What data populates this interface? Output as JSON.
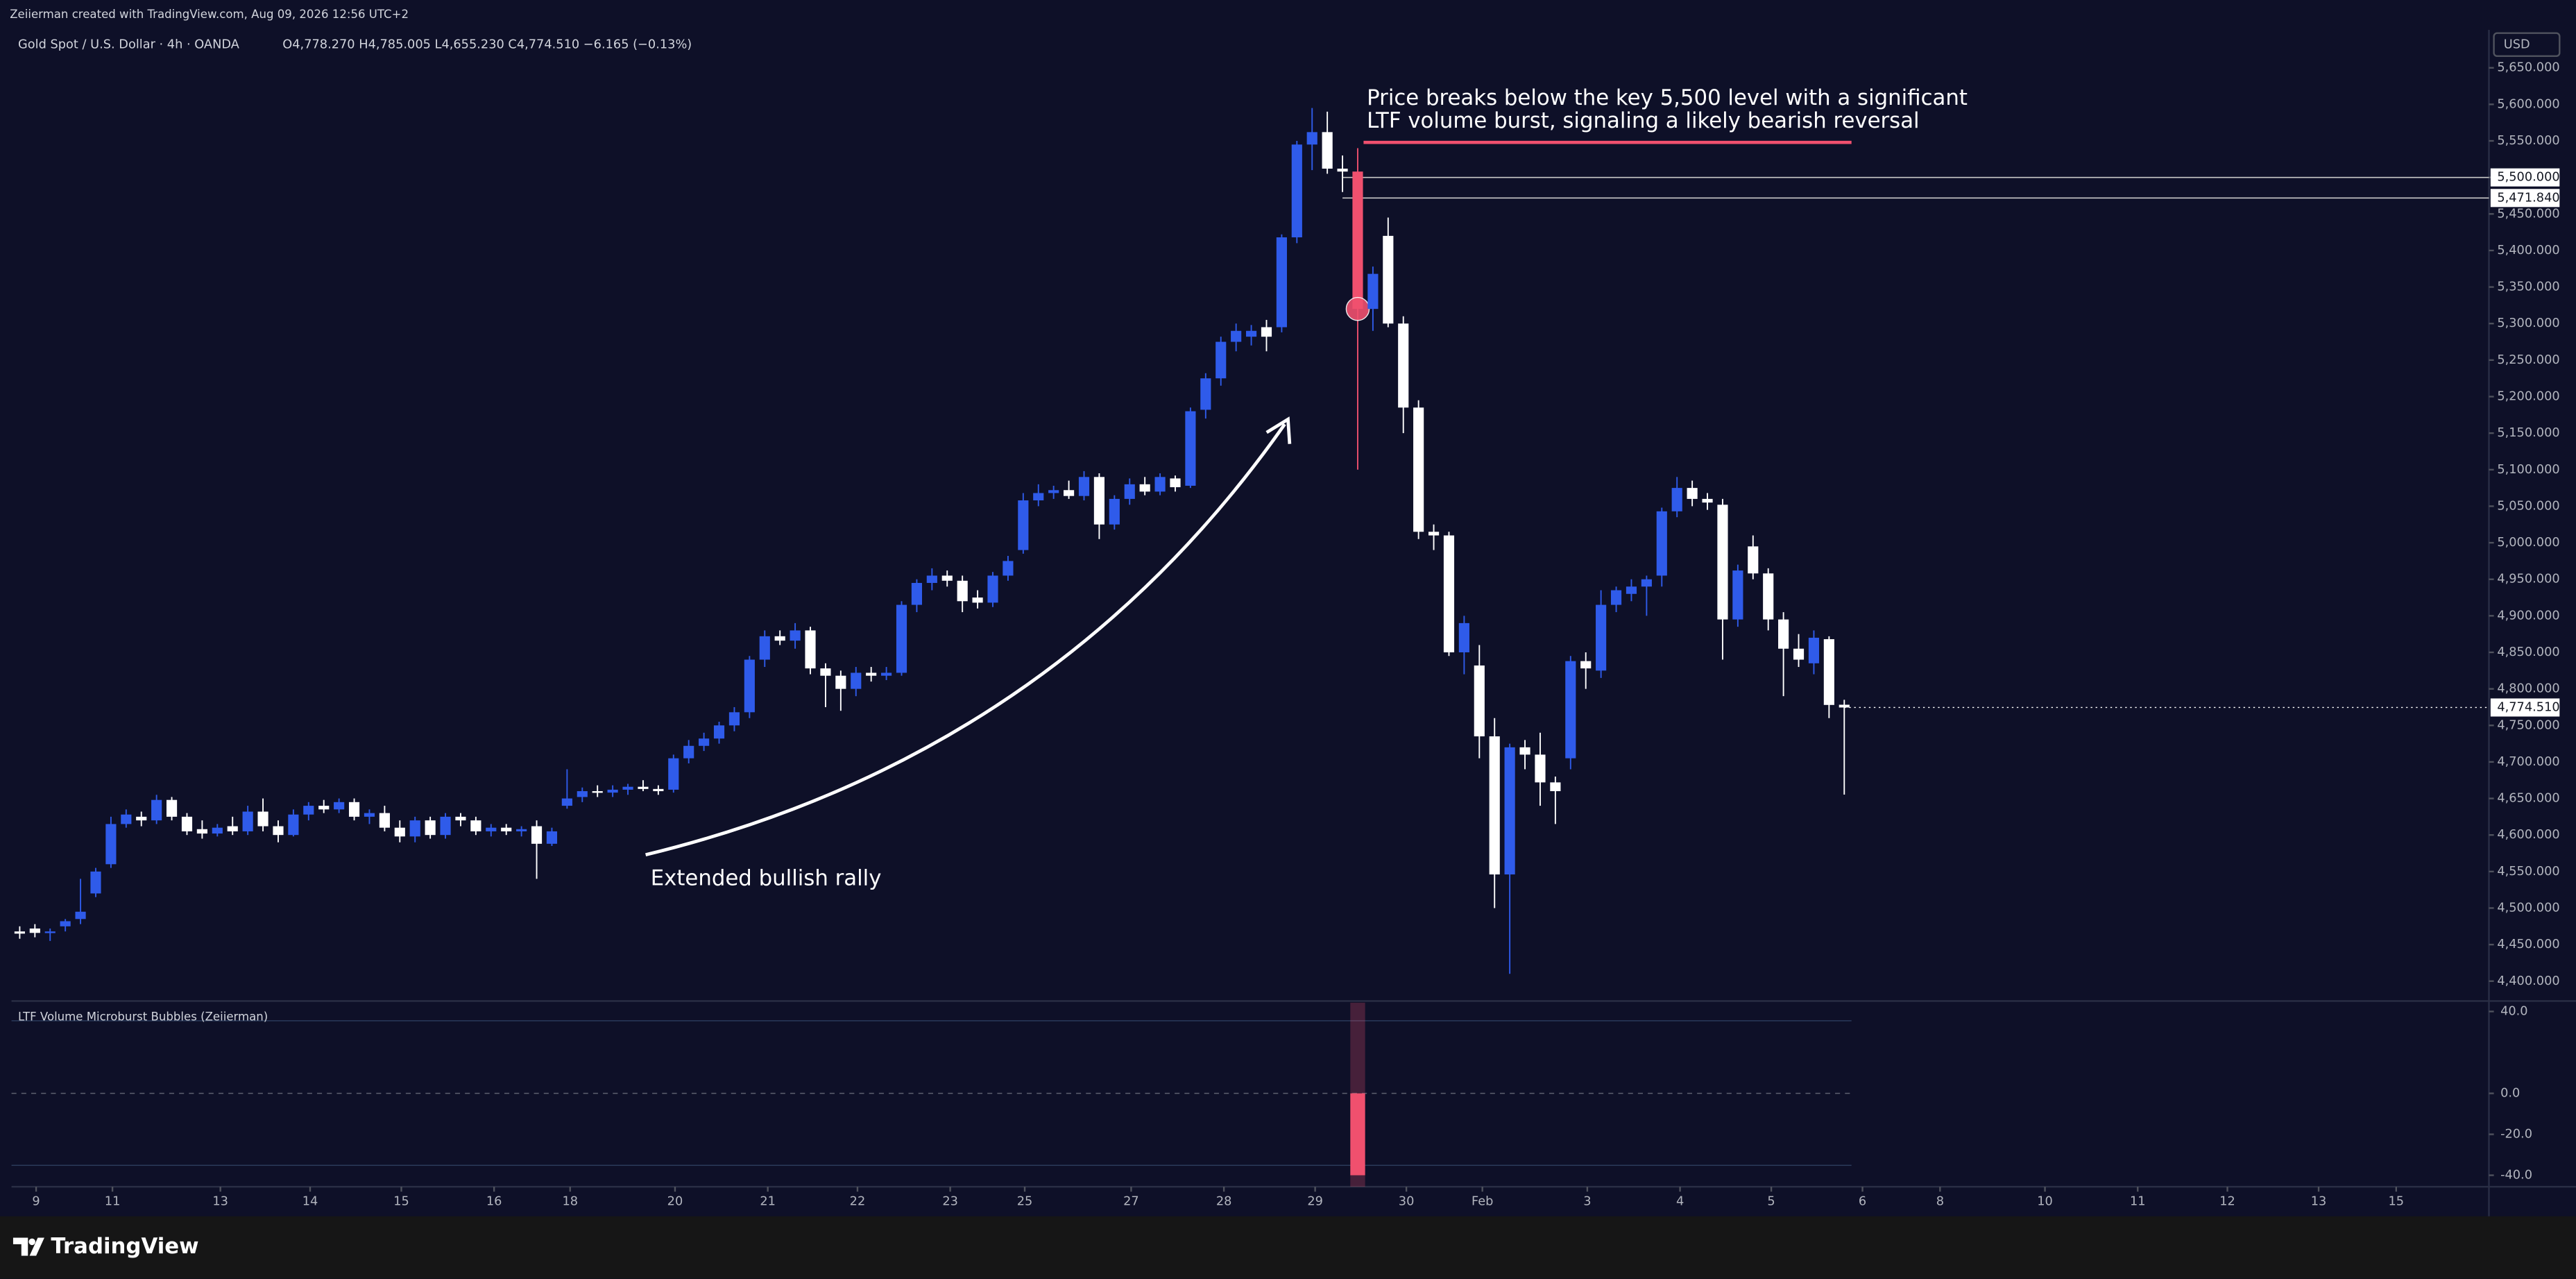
{
  "header": {
    "credit": "Zeiierman created with TradingView.com, Aug 09, 2026 12:56 UTC+2",
    "symbol": "Gold Spot / U.S. Dollar · 4h · OANDA",
    "quote": "O4,778.270 H4,785.005 L4,655.230 C4,774.510 −6.165 (−0.13%)",
    "currency": "USD"
  },
  "footer": "TradingView",
  "chart_data": {
    "type": "candlestick",
    "up_color": "#2f5bea",
    "down_color": "#ffffff",
    "signal_color": "#f0506e",
    "xlim": [
      -0.54,
      162.4
    ],
    "xticks": [
      {
        "value": 1.08,
        "label": "9"
      },
      {
        "value": 6.1,
        "label": "11"
      },
      {
        "value": 13.2,
        "label": "13"
      },
      {
        "value": 19.1,
        "label": "14"
      },
      {
        "value": 25.1,
        "label": "15"
      },
      {
        "value": 31.2,
        "label": "16"
      },
      {
        "value": 36.2,
        "label": "18"
      },
      {
        "value": 43.1,
        "label": "20"
      },
      {
        "value": 49.2,
        "label": "21"
      },
      {
        "value": 55.1,
        "label": "22"
      },
      {
        "value": 61.2,
        "label": "23"
      },
      {
        "value": 66.1,
        "label": "25"
      },
      {
        "value": 73.1,
        "label": "27"
      },
      {
        "value": 79.2,
        "label": "28"
      },
      {
        "value": 85.2,
        "label": "29"
      },
      {
        "value": 91.2,
        "label": "30"
      },
      {
        "value": 96.2,
        "label": "Feb"
      },
      {
        "value": 103.1,
        "label": "3"
      },
      {
        "value": 109.2,
        "label": "4"
      },
      {
        "value": 115.2,
        "label": "5"
      },
      {
        "value": 121.2,
        "label": "6"
      },
      {
        "value": 126.3,
        "label": "8"
      },
      {
        "value": 133.2,
        "label": "10"
      },
      {
        "value": 139.3,
        "label": "11"
      },
      {
        "value": 145.2,
        "label": "12"
      },
      {
        "value": 151.2,
        "label": "13"
      },
      {
        "value": 156.3,
        "label": "15"
      }
    ],
    "ylim": [
      4375,
      5702
    ],
    "yticks": [
      {
        "value": 4400,
        "label": "4,400.000"
      },
      {
        "value": 4450,
        "label": "4,450.000"
      },
      {
        "value": 4500,
        "label": "4,500.000"
      },
      {
        "value": 4550,
        "label": "4,550.000"
      },
      {
        "value": 4600,
        "label": "4,600.000"
      },
      {
        "value": 4650,
        "label": "4,650.000"
      },
      {
        "value": 4700,
        "label": "4,700.000"
      },
      {
        "value": 4750,
        "label": "4,750.000"
      },
      {
        "value": 4800,
        "label": "4,800.000"
      },
      {
        "value": 4850,
        "label": "4,850.000"
      },
      {
        "value": 4900,
        "label": "4,900.000"
      },
      {
        "value": 4950,
        "label": "4,950.000"
      },
      {
        "value": 5000,
        "label": "5,000.000"
      },
      {
        "value": 5050,
        "label": "5,050.000"
      },
      {
        "value": 5100,
        "label": "5,100.000"
      },
      {
        "value": 5150,
        "label": "5,150.000"
      },
      {
        "value": 5200,
        "label": "5,200.000"
      },
      {
        "value": 5250,
        "label": "5,250.000"
      },
      {
        "value": 5300,
        "label": "5,300.000"
      },
      {
        "value": 5350,
        "label": "5,350.000"
      },
      {
        "value": 5400,
        "label": "5,400.000"
      },
      {
        "value": 5450,
        "label": "5,450.000"
      },
      {
        "value": 5500,
        "label": "5,500.000"
      },
      {
        "value": 5550,
        "label": "5,550.000"
      },
      {
        "value": 5600,
        "label": "5,600.000"
      },
      {
        "value": 5650,
        "label": "5,650.000"
      }
    ],
    "levels": [
      {
        "value": 5500,
        "label": "5,500.000"
      },
      {
        "value": 5471.84,
        "label": "5,471.840"
      }
    ],
    "last_price": {
      "value": 4774.51,
      "label": "4,774.510"
    },
    "candles": [
      [
        4468,
        4475,
        4458,
        4465
      ],
      [
        4472,
        4478,
        4460,
        4466
      ],
      [
        4466,
        4472,
        4455,
        4468
      ],
      [
        4475,
        4485,
        4468,
        4482
      ],
      [
        4485,
        4540,
        4478,
        4495
      ],
      [
        4520,
        4555,
        4515,
        4550
      ],
      [
        4560,
        4625,
        4555,
        4615
      ],
      [
        4615,
        4635,
        4610,
        4628
      ],
      [
        4625,
        4632,
        4612,
        4620
      ],
      [
        4620,
        4655,
        4615,
        4648
      ],
      [
        4648,
        4652,
        4620,
        4625
      ],
      [
        4625,
        4630,
        4600,
        4605
      ],
      [
        4608,
        4620,
        4595,
        4602
      ],
      [
        4602,
        4615,
        4598,
        4610
      ],
      [
        4612,
        4625,
        4600,
        4605
      ],
      [
        4605,
        4640,
        4600,
        4632
      ],
      [
        4632,
        4650,
        4605,
        4612
      ],
      [
        4612,
        4620,
        4590,
        4600
      ],
      [
        4600,
        4635,
        4598,
        4628
      ],
      [
        4628,
        4645,
        4620,
        4640
      ],
      [
        4640,
        4648,
        4630,
        4635
      ],
      [
        4635,
        4650,
        4630,
        4645
      ],
      [
        4645,
        4650,
        4620,
        4625
      ],
      [
        4625,
        4635,
        4615,
        4630
      ],
      [
        4630,
        4640,
        4605,
        4610
      ],
      [
        4610,
        4620,
        4590,
        4598
      ],
      [
        4598,
        4625,
        4590,
        4620
      ],
      [
        4620,
        4625,
        4595,
        4600
      ],
      [
        4600,
        4630,
        4595,
        4625
      ],
      [
        4625,
        4630,
        4612,
        4620
      ],
      [
        4620,
        4625,
        4600,
        4605
      ],
      [
        4605,
        4615,
        4598,
        4610
      ],
      [
        4610,
        4615,
        4600,
        4605
      ],
      [
        4605,
        4612,
        4598,
        4608
      ],
      [
        4612,
        4620,
        4540,
        4588
      ],
      [
        4588,
        4610,
        4585,
        4605
      ],
      [
        4640,
        4690,
        4636,
        4650
      ],
      [
        4652,
        4665,
        4645,
        4660
      ],
      [
        4660,
        4668,
        4652,
        4658
      ],
      [
        4658,
        4668,
        4652,
        4662
      ],
      [
        4662,
        4670,
        4655,
        4666
      ],
      [
        4666,
        4675,
        4660,
        4663
      ],
      [
        4663,
        4668,
        4655,
        4660
      ],
      [
        4662,
        4710,
        4658,
        4705
      ],
      [
        4705,
        4730,
        4698,
        4722
      ],
      [
        4722,
        4740,
        4715,
        4732
      ],
      [
        4732,
        4755,
        4725,
        4750
      ],
      [
        4750,
        4775,
        4742,
        4768
      ],
      [
        4768,
        4845,
        4760,
        4840
      ],
      [
        4840,
        4880,
        4830,
        4872
      ],
      [
        4872,
        4880,
        4860,
        4866
      ],
      [
        4866,
        4890,
        4855,
        4880
      ],
      [
        4880,
        4885,
        4820,
        4828
      ],
      [
        4828,
        4835,
        4775,
        4818
      ],
      [
        4818,
        4825,
        4770,
        4800
      ],
      [
        4800,
        4830,
        4790,
        4822
      ],
      [
        4822,
        4830,
        4810,
        4818
      ],
      [
        4818,
        4830,
        4812,
        4822
      ],
      [
        4822,
        4920,
        4818,
        4915
      ],
      [
        4915,
        4950,
        4905,
        4945
      ],
      [
        4945,
        4965,
        4935,
        4955
      ],
      [
        4955,
        4962,
        4940,
        4948
      ],
      [
        4948,
        4955,
        4905,
        4920
      ],
      [
        4925,
        4935,
        4910,
        4918
      ],
      [
        4918,
        4960,
        4912,
        4955
      ],
      [
        4955,
        4982,
        4948,
        4975
      ],
      [
        4990,
        5068,
        4985,
        5058
      ],
      [
        5058,
        5080,
        5050,
        5068
      ],
      [
        5068,
        5078,
        5060,
        5072
      ],
      [
        5072,
        5085,
        5060,
        5064
      ],
      [
        5064,
        5098,
        5058,
        5090
      ],
      [
        5090,
        5095,
        5005,
        5025
      ],
      [
        5025,
        5065,
        5018,
        5060
      ],
      [
        5060,
        5088,
        5052,
        5080
      ],
      [
        5080,
        5090,
        5065,
        5070
      ],
      [
        5070,
        5095,
        5065,
        5090
      ],
      [
        5088,
        5092,
        5070,
        5076
      ],
      [
        5078,
        5185,
        5075,
        5180
      ],
      [
        5182,
        5232,
        5170,
        5225
      ],
      [
        5225,
        5282,
        5215,
        5275
      ],
      [
        5275,
        5300,
        5262,
        5290
      ],
      [
        5282,
        5298,
        5270,
        5290
      ],
      [
        5295,
        5305,
        5262,
        5282
      ],
      [
        5295,
        5422,
        5288,
        5418
      ],
      [
        5418,
        5550,
        5410,
        5545
      ],
      [
        5545,
        5595,
        5510,
        5562
      ],
      [
        5562,
        5590,
        5505,
        5512
      ],
      [
        5512,
        5530,
        5480,
        5508
      ],
      [
        5508,
        5540,
        5100,
        5320
      ],
      [
        5320,
        5378,
        5290,
        5368
      ],
      [
        5420,
        5445,
        5295,
        5300
      ],
      [
        5300,
        5310,
        5150,
        5185
      ],
      [
        5185,
        5195,
        5005,
        5015
      ],
      [
        5015,
        5025,
        4990,
        5010
      ],
      [
        5010,
        5015,
        4845,
        4850
      ],
      [
        4850,
        4900,
        4820,
        4890
      ],
      [
        4832,
        4860,
        4705,
        4735
      ],
      [
        4735,
        4760,
        4500,
        4546
      ],
      [
        4546,
        4725,
        4410,
        4720
      ],
      [
        4720,
        4730,
        4690,
        4710
      ],
      [
        4710,
        4740,
        4640,
        4672
      ],
      [
        4672,
        4680,
        4615,
        4660
      ],
      [
        4705,
        4845,
        4690,
        4838
      ],
      [
        4838,
        4850,
        4800,
        4828
      ],
      [
        4825,
        4935,
        4815,
        4915
      ],
      [
        4915,
        4940,
        4905,
        4935
      ],
      [
        4930,
        4950,
        4920,
        4940
      ],
      [
        4940,
        4955,
        4900,
        4950
      ],
      [
        4955,
        5048,
        4940,
        5043
      ],
      [
        5043,
        5090,
        5035,
        5075
      ],
      [
        5075,
        5085,
        5050,
        5060
      ],
      [
        5060,
        5068,
        5045,
        5055
      ],
      [
        5052,
        5060,
        4840,
        4895
      ],
      [
        4895,
        4970,
        4885,
        4962
      ],
      [
        4995,
        5010,
        4950,
        4958
      ],
      [
        4958,
        4965,
        4880,
        4895
      ],
      [
        4895,
        4905,
        4790,
        4855
      ],
      [
        4855,
        4875,
        4830,
        4840
      ],
      [
        4835,
        4880,
        4820,
        4870
      ],
      [
        4868,
        4872,
        4760,
        4778
      ],
      [
        4778.27,
        4785.005,
        4655.23,
        4774.51
      ]
    ],
    "annotations": {
      "signal": [
        "Price breaks below the key 5,500 level with a significant",
        "LTF volume burst, signaling a likely bearish reversal"
      ],
      "rally": "Extended bullish rally"
    },
    "indicator": {
      "title": "LTF Volume Microburst Bubbles (Zeiierman)",
      "color": "#f0506e",
      "ylim": [
        -45.6,
        44.3
      ],
      "yticks": [
        {
          "value": 40,
          "label": "40.0"
        },
        {
          "value": 0,
          "label": "0.0"
        },
        {
          "value": -20,
          "label": "-20.0"
        },
        {
          "value": -40,
          "label": "-40.0"
        }
      ],
      "values": [
        null,
        null,
        null,
        null,
        null,
        null,
        null,
        null,
        null,
        null,
        null,
        null,
        null,
        null,
        null,
        null,
        null,
        null,
        null,
        null,
        null,
        null,
        null,
        null,
        null,
        null,
        null,
        null,
        null,
        null,
        null,
        null,
        null,
        null,
        null,
        null,
        null,
        null,
        null,
        null,
        null,
        null,
        null,
        null,
        null,
        null,
        null,
        null,
        null,
        null,
        null,
        null,
        null,
        null,
        null,
        null,
        null,
        null,
        null,
        null,
        null,
        null,
        null,
        null,
        null,
        null,
        null,
        null,
        null,
        null,
        null,
        null,
        null,
        null,
        null,
        null,
        null,
        null,
        null,
        null,
        null,
        null,
        null,
        null,
        null,
        null,
        null,
        null,
        -40,
        null,
        null,
        null,
        null,
        null,
        null,
        null,
        null,
        null,
        null,
        null,
        null,
        null,
        null,
        null,
        null,
        null,
        null,
        null,
        null,
        null,
        null,
        null,
        null,
        null,
        null,
        null,
        null,
        null,
        null,
        null,
        null
      ]
    }
  }
}
